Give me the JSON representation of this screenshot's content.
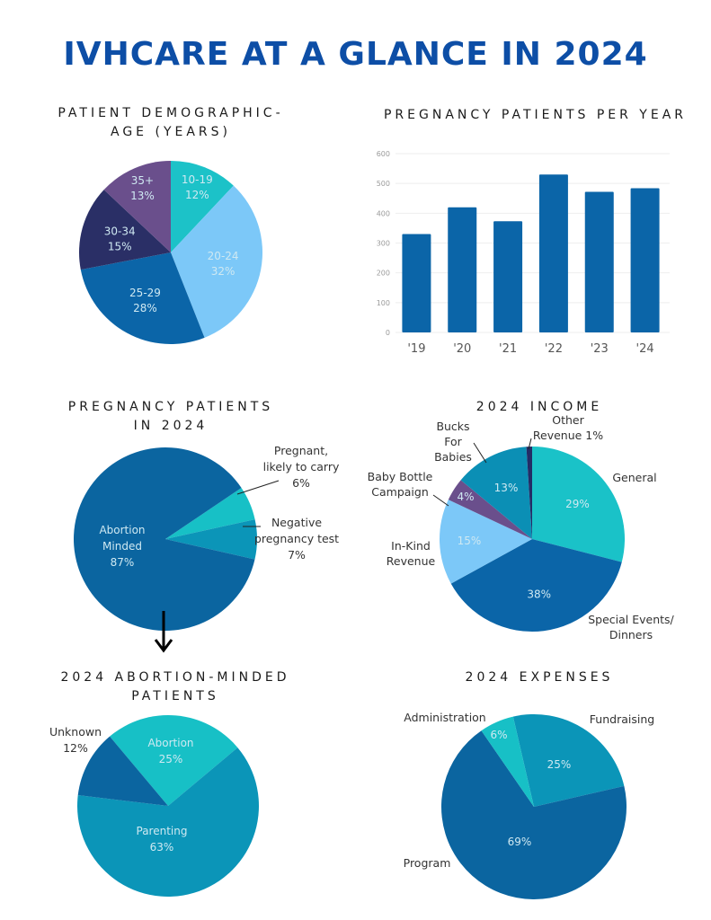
{
  "title": "IVHCARE AT A GLANCE IN 2024",
  "chart_data": [
    {
      "id": "age",
      "type": "pie",
      "title": "PATIENT DEMOGRAPHIC- AGE (YEARS)",
      "title_lines": [
        "PATIENT DEMOGRAPHIC-",
        "AGE (YEARS)"
      ],
      "slices": [
        {
          "label": "10-19",
          "value": 12,
          "text": "12%",
          "color": "#1cc2c8"
        },
        {
          "label": "20-24",
          "value": 32,
          "text": "32%",
          "color": "#7cc8f8"
        },
        {
          "label": "25-29",
          "value": 28,
          "text": "28%",
          "color": "#0b65a8"
        },
        {
          "label": "30-34",
          "value": 15,
          "text": "15%",
          "color": "#2a2f66"
        },
        {
          "label": "35+",
          "value": 13,
          "text": "13%",
          "color": "#6a4f8c"
        }
      ]
    },
    {
      "id": "per-year",
      "type": "bar",
      "title": "PREGNANCY PATIENTS PER YEAR",
      "categories": [
        "'19",
        "'20",
        "'21",
        "'22",
        "'23",
        "'24"
      ],
      "values": [
        330,
        420,
        373,
        530,
        472,
        484
      ],
      "ylim": [
        0,
        600
      ],
      "yticks": [
        0,
        100,
        200,
        300,
        400,
        500,
        600
      ],
      "grid": true,
      "color": "#0b65a8",
      "xlabel": "",
      "ylabel": ""
    },
    {
      "id": "pregnancy-2024",
      "type": "pie",
      "title": "PREGNANCY PATIENTS IN 2024",
      "title_lines": [
        "PREGNANCY PATIENTS",
        "IN 2024"
      ],
      "slices": [
        {
          "label": "Pregnant, likely to carry",
          "value": 6,
          "text": "6%",
          "color": "#17c0c6"
        },
        {
          "label": "Negative pregnancy test",
          "value": 7,
          "text": "7%",
          "color": "#0b95b8"
        },
        {
          "label": "Abortion Minded",
          "value": 87,
          "text": "87%",
          "color": "#0b65a0"
        }
      ],
      "outside_labels": [
        [
          "Pregnant,",
          "likely to carry",
          "6%"
        ],
        [
          "Negative",
          "pregnancy test",
          "7%"
        ]
      ],
      "inside_label": [
        "Abortion",
        "Minded",
        "87%"
      ]
    },
    {
      "id": "income",
      "type": "pie",
      "title": "2024 INCOME",
      "slices": [
        {
          "label": "General",
          "value": 29,
          "text": "29%",
          "color": "#1ac2c8"
        },
        {
          "label": "Special Events/ Dinners",
          "value": 38,
          "text": "38%",
          "color": "#0b65a8"
        },
        {
          "label": "In-Kind Revenue",
          "value": 15,
          "text": "15%",
          "color": "#7cc8f8"
        },
        {
          "label": "Baby Bottle Campaign",
          "value": 4,
          "text": "4%",
          "color": "#6a4f8c"
        },
        {
          "label": "Bucks For Babies",
          "value": 13,
          "text": "13%",
          "color": "#0b8fb5"
        },
        {
          "label": "Other Revenue",
          "value": 1,
          "text": "1%",
          "color": "#232c66"
        }
      ],
      "outside_labels": {
        "general": [
          "General"
        ],
        "special": [
          "Special Events/",
          "Dinners"
        ],
        "inkind": [
          "In-Kind",
          "Revenue"
        ],
        "bottle": [
          "Baby Bottle",
          "Campaign"
        ],
        "bucks": [
          "Bucks",
          "For",
          "Babies"
        ],
        "other": [
          "Other",
          "Revenue 1%"
        ]
      }
    },
    {
      "id": "abortion-minded",
      "type": "pie",
      "title": "2024 ABORTION-MINDED PATIENTS",
      "title_lines": [
        "2024 ABORTION-MINDED",
        "PATIENTS"
      ],
      "slices": [
        {
          "label": "Abortion",
          "value": 25,
          "text": "25%",
          "color": "#17c0c6"
        },
        {
          "label": "Parenting",
          "value": 63,
          "text": "63%",
          "color": "#0b95b8"
        },
        {
          "label": "Unknown",
          "value": 12,
          "text": "12%",
          "color": "#0b65a0"
        }
      ]
    },
    {
      "id": "expenses",
      "type": "pie",
      "title": "2024 EXPENSES",
      "slices": [
        {
          "label": "Fundraising",
          "value": 25,
          "text": "25%",
          "color": "#0b95b8"
        },
        {
          "label": "Program",
          "value": 69,
          "text": "69%",
          "color": "#0b65a0"
        },
        {
          "label": "Administration",
          "value": 6,
          "text": "6%",
          "color": "#17c0c6"
        }
      ]
    }
  ]
}
